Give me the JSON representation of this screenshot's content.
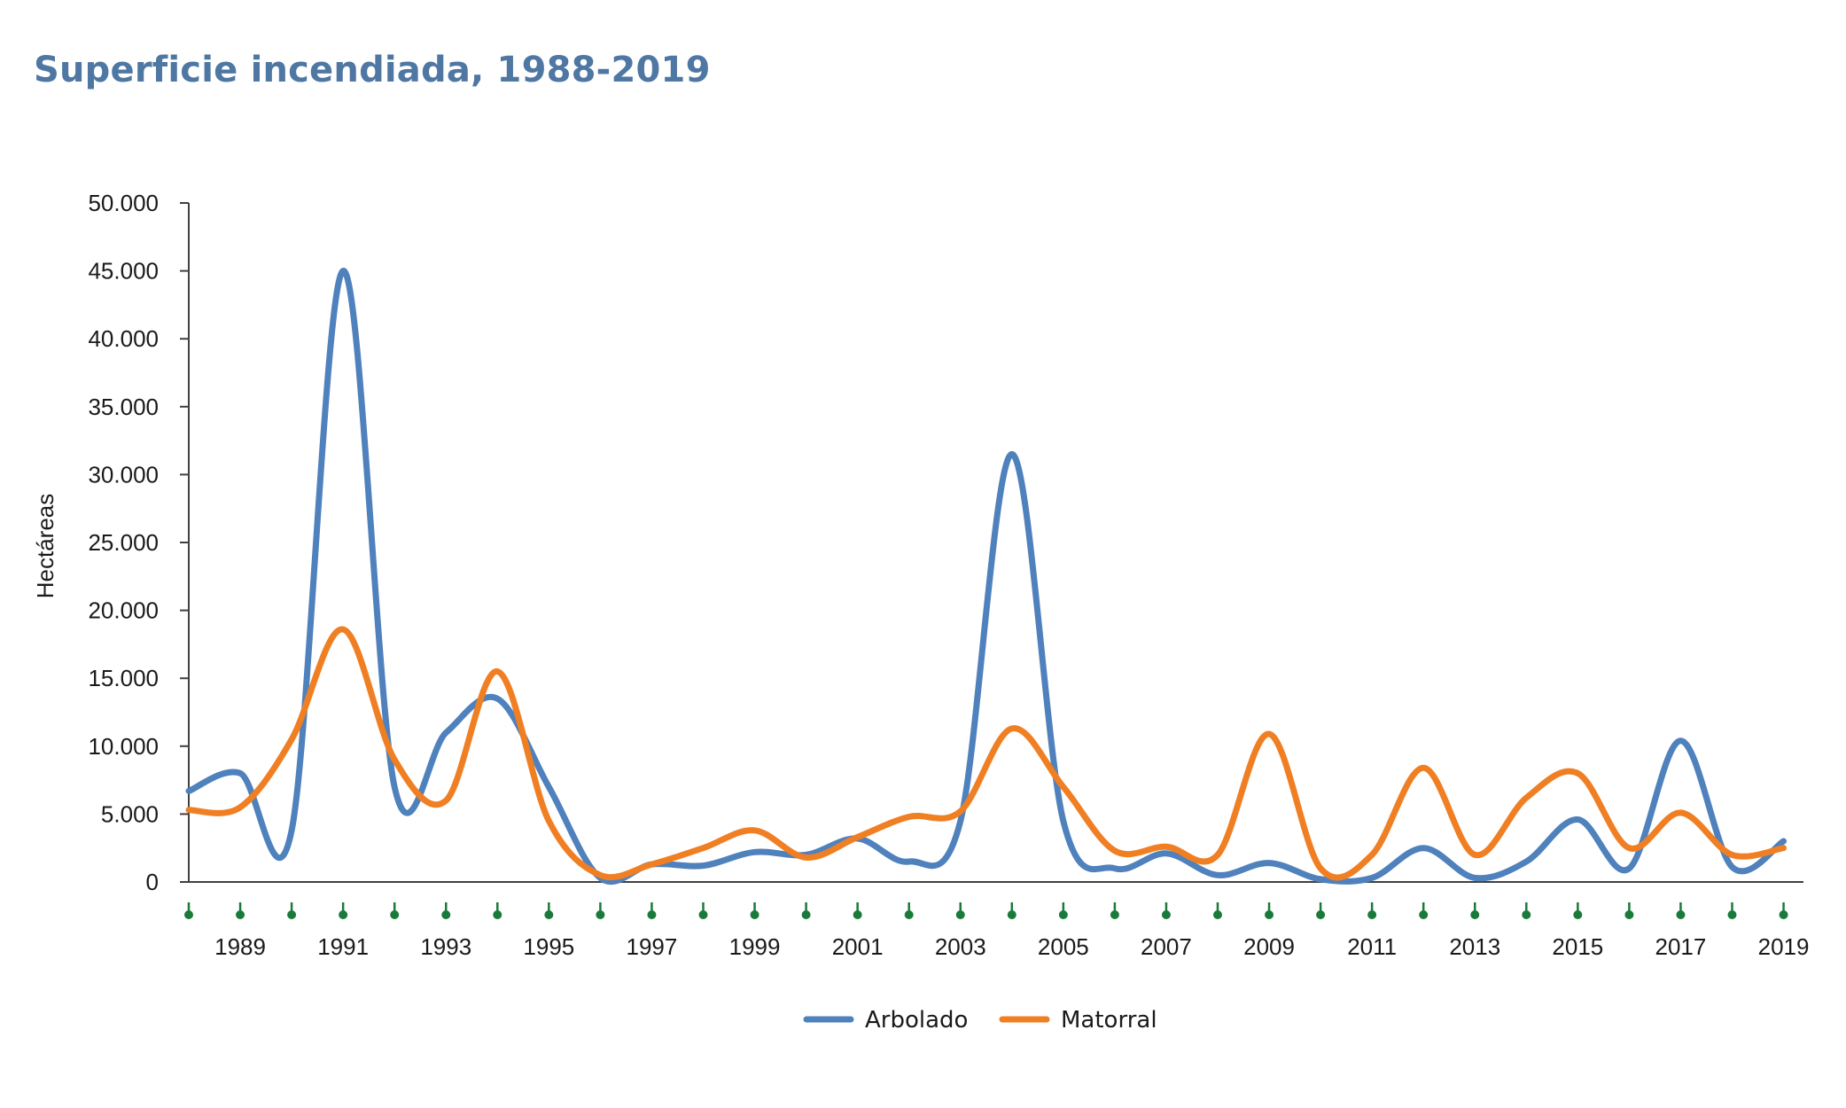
{
  "chart_data": {
    "type": "line",
    "title": "Superficie incendiada, 1988-2019",
    "xlabel": "",
    "ylabel": "Hectáreas",
    "ylim": [
      0,
      50000
    ],
    "y_ticks": [
      0,
      5000,
      10000,
      15000,
      20000,
      25000,
      30000,
      35000,
      40000,
      45000,
      50000
    ],
    "y_tick_labels": [
      "0",
      "5.000",
      "10.000",
      "15.000",
      "20.000",
      "25.000",
      "30.000",
      "35.000",
      "40.000",
      "45.000",
      "50.000"
    ],
    "x": [
      1988,
      1989,
      1990,
      1991,
      1992,
      1993,
      1994,
      1995,
      1996,
      1997,
      1998,
      1999,
      2000,
      2001,
      2002,
      2003,
      2004,
      2005,
      2006,
      2007,
      2008,
      2009,
      2010,
      2011,
      2012,
      2013,
      2014,
      2015,
      2016,
      2017,
      2018,
      2019
    ],
    "x_tick_labels": [
      "1989",
      "1991",
      "1993",
      "1995",
      "1997",
      "1999",
      "2001",
      "2003",
      "2005",
      "2007",
      "2009",
      "2011",
      "2013",
      "2015",
      "2017",
      "2019"
    ],
    "grid": false,
    "legend_position": "bottom",
    "series": [
      {
        "name": "Arbolado",
        "color": "#4f81bd",
        "values": [
          6700,
          8000,
          3800,
          45000,
          7000,
          11000,
          13500,
          7000,
          300,
          1300,
          1200,
          2200,
          2000,
          3200,
          1500,
          4500,
          31500,
          4500,
          1000,
          2100,
          500,
          1400,
          200,
          300,
          2500,
          300,
          1500,
          4600,
          1000,
          10400,
          1100,
          3000
        ]
      },
      {
        "name": "Matorral",
        "color": "#f07f24",
        "values": [
          5300,
          5500,
          10500,
          18600,
          9000,
          6000,
          15500,
          4500,
          500,
          1300,
          2500,
          3800,
          1800,
          3300,
          4800,
          5200,
          11300,
          7000,
          2300,
          2600,
          2000,
          10900,
          1000,
          2000,
          8400,
          2000,
          6200,
          8000,
          2500,
          5100,
          2000,
          2500
        ]
      }
    ],
    "tick_marker_color": "#1a7a3a",
    "axis_color": "#404040"
  }
}
